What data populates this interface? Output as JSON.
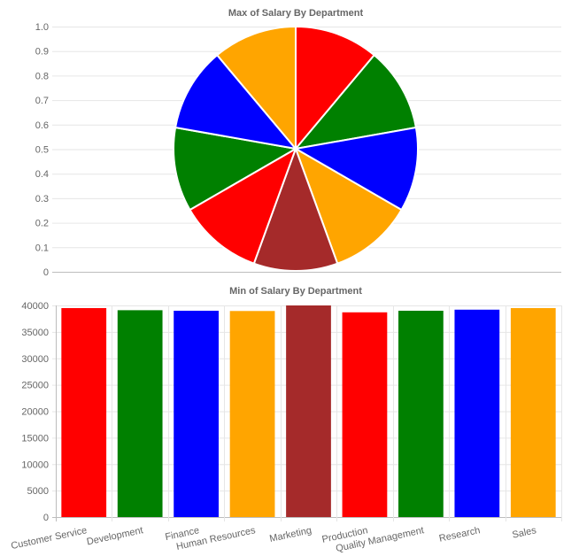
{
  "chart_data": [
    {
      "type": "pie",
      "title": "Max of Salary By Department",
      "categories": [
        "Customer Service",
        "Development",
        "Finance",
        "Human Resources",
        "Marketing",
        "Production",
        "Quality Management",
        "Research",
        "Sales"
      ],
      "values": [
        1,
        1,
        1,
        1,
        1,
        1,
        1,
        1,
        1
      ],
      "colors": [
        "#ff0000",
        "#008000",
        "#0000ff",
        "#ffa500",
        "#a52a2a",
        "#ff0000",
        "#008000",
        "#0000ff",
        "#ffa500"
      ],
      "y_ticks": [
        "0",
        "0.1",
        "0.2",
        "0.3",
        "0.4",
        "0.5",
        "0.6",
        "0.7",
        "0.8",
        "0.9",
        "1.0"
      ],
      "ylim": [
        0,
        1
      ],
      "grid": true,
      "legend": "none"
    },
    {
      "type": "bar",
      "title": "Min of Salary By Department",
      "categories": [
        "Customer Service",
        "Development",
        "Finance",
        "Human Resources",
        "Marketing",
        "Production",
        "Quality Management",
        "Research",
        "Sales"
      ],
      "values": [
        39500,
        39100,
        39000,
        38950,
        40000,
        38700,
        39000,
        39200,
        39500
      ],
      "colors": [
        "#ff0000",
        "#008000",
        "#0000ff",
        "#ffa500",
        "#a52a2a",
        "#ff0000",
        "#008000",
        "#0000ff",
        "#ffa500"
      ],
      "y_ticks": [
        "0",
        "5000",
        "10000",
        "15000",
        "20000",
        "25000",
        "30000",
        "35000",
        "40000"
      ],
      "ylim": [
        0,
        40000
      ],
      "grid": true,
      "legend": "none"
    }
  ]
}
